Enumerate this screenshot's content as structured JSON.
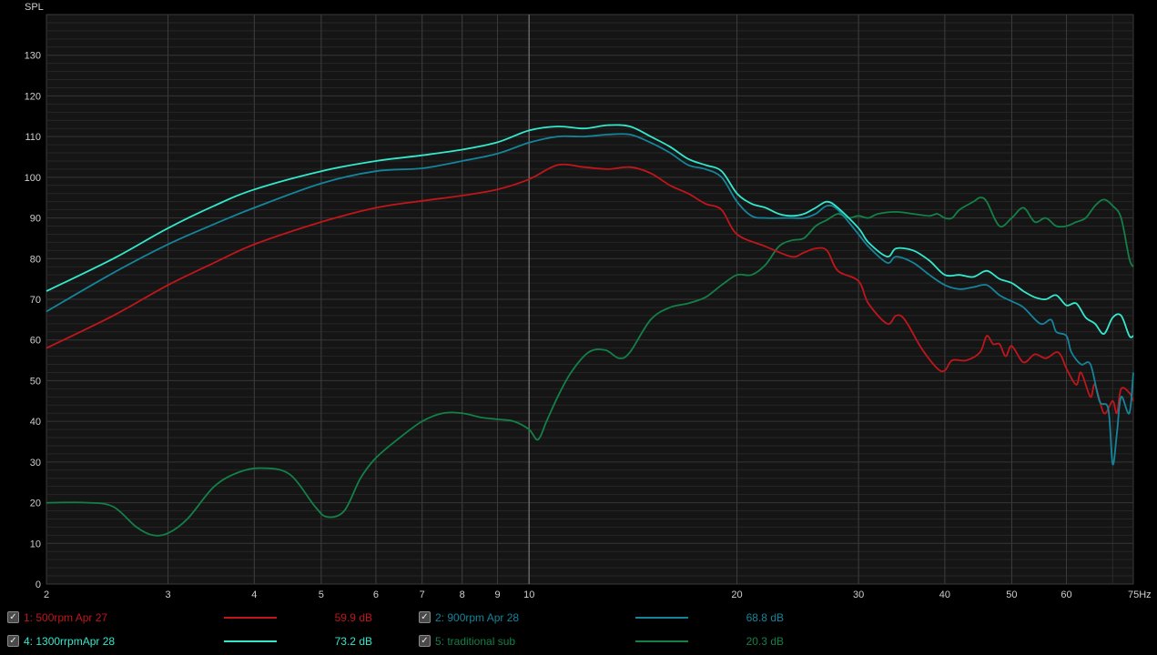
{
  "chart_data": {
    "type": "line",
    "xscale": "log",
    "xlim": [
      2,
      75
    ],
    "ylim": [
      0,
      140
    ],
    "ylabel": "SPL",
    "xunit": "Hz",
    "grid": true,
    "xtick_labels": [
      {
        "x": 2,
        "label": "2"
      },
      {
        "x": 3,
        "label": "3"
      },
      {
        "x": 4,
        "label": "4"
      },
      {
        "x": 5,
        "label": "5"
      },
      {
        "x": 6,
        "label": "6"
      },
      {
        "x": 7,
        "label": "7"
      },
      {
        "x": 8,
        "label": "8"
      },
      {
        "x": 9,
        "label": "9"
      },
      {
        "x": 10,
        "label": "10"
      },
      {
        "x": 20,
        "label": "20"
      },
      {
        "x": 30,
        "label": "30"
      },
      {
        "x": 40,
        "label": "40"
      },
      {
        "x": 50,
        "label": "50"
      },
      {
        "x": 60,
        "label": "60"
      },
      {
        "x": 75,
        "label": "75Hz"
      }
    ],
    "ytick_labels": [
      "0",
      "10",
      "20",
      "30",
      "40",
      "50",
      "60",
      "70",
      "80",
      "90",
      "100",
      "110",
      "120",
      "130"
    ],
    "series": [
      {
        "name": "1: 500rpm Apr 27",
        "color": "#c0161b",
        "value_label": "59.9 dB",
        "points": [
          [
            2,
            58
          ],
          [
            2.5,
            66
          ],
          [
            3,
            73.5
          ],
          [
            3.5,
            79
          ],
          [
            4,
            83.5
          ],
          [
            5,
            89
          ],
          [
            6,
            92.5
          ],
          [
            7,
            94.2
          ],
          [
            8,
            95.5
          ],
          [
            9,
            97
          ],
          [
            10,
            99.5
          ],
          [
            11,
            103
          ],
          [
            12,
            102.5
          ],
          [
            13,
            102
          ],
          [
            14,
            102.5
          ],
          [
            15,
            101
          ],
          [
            16,
            98
          ],
          [
            17,
            96
          ],
          [
            18,
            93.5
          ],
          [
            19,
            92
          ],
          [
            20,
            86
          ],
          [
            22,
            83
          ],
          [
            24,
            80.5
          ],
          [
            25,
            81.5
          ],
          [
            26,
            82.5
          ],
          [
            27,
            82
          ],
          [
            28,
            77
          ],
          [
            30,
            74.5
          ],
          [
            31,
            69
          ],
          [
            33,
            64
          ],
          [
            34,
            66
          ],
          [
            35,
            65
          ],
          [
            37,
            58
          ],
          [
            39,
            53
          ],
          [
            40,
            52.5
          ],
          [
            41,
            55
          ],
          [
            43,
            55
          ],
          [
            45,
            57
          ],
          [
            46,
            61
          ],
          [
            47,
            59
          ],
          [
            48,
            59
          ],
          [
            49,
            56
          ],
          [
            50,
            58.5
          ],
          [
            52,
            54.5
          ],
          [
            54,
            56.5
          ],
          [
            56,
            55.5
          ],
          [
            58,
            57
          ],
          [
            59,
            56
          ],
          [
            60,
            53
          ],
          [
            62,
            49
          ],
          [
            63,
            52
          ],
          [
            65,
            46
          ],
          [
            66,
            49
          ],
          [
            68,
            42
          ],
          [
            70,
            45
          ],
          [
            71,
            42
          ],
          [
            72,
            48
          ],
          [
            74,
            47
          ],
          [
            75,
            45
          ]
        ]
      },
      {
        "name": "2: 900rpm Apr 28",
        "color": "#15849a",
        "value_label": "68.8 dB",
        "points": [
          [
            2,
            67
          ],
          [
            2.5,
            76.5
          ],
          [
            3,
            83.5
          ],
          [
            3.5,
            88.5
          ],
          [
            4,
            92.5
          ],
          [
            5,
            98.5
          ],
          [
            6,
            101.5
          ],
          [
            7,
            102.2
          ],
          [
            8,
            104
          ],
          [
            9,
            105.8
          ],
          [
            10,
            108.5
          ],
          [
            11,
            110
          ],
          [
            12,
            110
          ],
          [
            13,
            110.5
          ],
          [
            14,
            110.5
          ],
          [
            15,
            108.5
          ],
          [
            16,
            106
          ],
          [
            17,
            103
          ],
          [
            18,
            102
          ],
          [
            19,
            100
          ],
          [
            20,
            94
          ],
          [
            21,
            90.5
          ],
          [
            22,
            90
          ],
          [
            24,
            90
          ],
          [
            25,
            90
          ],
          [
            26,
            91
          ],
          [
            27,
            93
          ],
          [
            28,
            92
          ],
          [
            30,
            86
          ],
          [
            31,
            83
          ],
          [
            33,
            79
          ],
          [
            34,
            80.5
          ],
          [
            36,
            79
          ],
          [
            38,
            76
          ],
          [
            40,
            73.5
          ],
          [
            42,
            72.5
          ],
          [
            44,
            73
          ],
          [
            46,
            73.5
          ],
          [
            48,
            71
          ],
          [
            50,
            69.5
          ],
          [
            52,
            68
          ],
          [
            55,
            64
          ],
          [
            57,
            65
          ],
          [
            58,
            62
          ],
          [
            60,
            61
          ],
          [
            61,
            57
          ],
          [
            63,
            54
          ],
          [
            65,
            54
          ],
          [
            67,
            45
          ],
          [
            69,
            43
          ],
          [
            70,
            29.5
          ],
          [
            71,
            37
          ],
          [
            72,
            46
          ],
          [
            74,
            42
          ],
          [
            75,
            52
          ]
        ]
      },
      {
        "name": "4: 1300rrpmApr 28",
        "color": "#33e8cc",
        "value_label": "73.2 dB",
        "points": [
          [
            2,
            72
          ],
          [
            2.5,
            80
          ],
          [
            3,
            87.5
          ],
          [
            3.5,
            93
          ],
          [
            4,
            97
          ],
          [
            5,
            101.5
          ],
          [
            6,
            104
          ],
          [
            7,
            105.4
          ],
          [
            8,
            106.8
          ],
          [
            9,
            108.6
          ],
          [
            10,
            111.5
          ],
          [
            11,
            112.5
          ],
          [
            12,
            112
          ],
          [
            13,
            112.8
          ],
          [
            14,
            112.5
          ],
          [
            15,
            110
          ],
          [
            16,
            107.5
          ],
          [
            17,
            104.5
          ],
          [
            18,
            103
          ],
          [
            19,
            101.5
          ],
          [
            20,
            96
          ],
          [
            21,
            93.5
          ],
          [
            22,
            92.5
          ],
          [
            23,
            91
          ],
          [
            24,
            90.5
          ],
          [
            25,
            91
          ],
          [
            26,
            92.5
          ],
          [
            27,
            94
          ],
          [
            28,
            92.5
          ],
          [
            30,
            87.5
          ],
          [
            31,
            84
          ],
          [
            33,
            80.5
          ],
          [
            34,
            82.5
          ],
          [
            36,
            82
          ],
          [
            38,
            79.5
          ],
          [
            40,
            76
          ],
          [
            42,
            76
          ],
          [
            44,
            75.5
          ],
          [
            46,
            77
          ],
          [
            48,
            75
          ],
          [
            50,
            74
          ],
          [
            52,
            72
          ],
          [
            54,
            70.5
          ],
          [
            56,
            70
          ],
          [
            58,
            71
          ],
          [
            60,
            68.5
          ],
          [
            62,
            69
          ],
          [
            64,
            65.5
          ],
          [
            66,
            64
          ],
          [
            68,
            61.5
          ],
          [
            70,
            65.5
          ],
          [
            72,
            66
          ],
          [
            74,
            61
          ],
          [
            75,
            61
          ]
        ]
      },
      {
        "name": "5: traditional sub",
        "color": "#138046",
        "value_label": "20.3 dB",
        "points": [
          [
            2,
            20
          ],
          [
            2.3,
            20
          ],
          [
            2.5,
            19
          ],
          [
            2.7,
            14
          ],
          [
            2.85,
            12
          ],
          [
            3,
            12.5
          ],
          [
            3.2,
            16
          ],
          [
            3.5,
            24
          ],
          [
            3.8,
            27.5
          ],
          [
            4.1,
            28.5
          ],
          [
            4.5,
            27
          ],
          [
            4.9,
            19
          ],
          [
            5.1,
            16.5
          ],
          [
            5.4,
            18
          ],
          [
            5.7,
            26
          ],
          [
            6,
            31
          ],
          [
            6.5,
            36
          ],
          [
            7,
            40
          ],
          [
            7.5,
            42
          ],
          [
            8,
            42
          ],
          [
            8.5,
            41
          ],
          [
            9,
            40.5
          ],
          [
            9.5,
            40
          ],
          [
            10,
            38
          ],
          [
            10.3,
            35.5
          ],
          [
            10.6,
            40
          ],
          [
            11,
            46
          ],
          [
            11.5,
            52
          ],
          [
            12.2,
            57
          ],
          [
            12.9,
            57.5
          ],
          [
            13.5,
            55.5
          ],
          [
            14,
            57
          ],
          [
            15,
            65
          ],
          [
            16,
            68
          ],
          [
            17,
            69
          ],
          [
            18,
            70.5
          ],
          [
            19,
            73.5
          ],
          [
            20,
            76
          ],
          [
            21,
            76
          ],
          [
            22,
            78.5
          ],
          [
            23,
            83
          ],
          [
            24,
            84.5
          ],
          [
            25,
            85
          ],
          [
            26,
            88
          ],
          [
            27,
            89.5
          ],
          [
            28,
            91
          ],
          [
            29,
            90
          ],
          [
            30,
            90.5
          ],
          [
            31,
            90
          ],
          [
            32,
            91
          ],
          [
            34,
            91.5
          ],
          [
            36,
            91
          ],
          [
            38,
            90.5
          ],
          [
            39,
            91
          ],
          [
            40,
            90
          ],
          [
            41,
            90
          ],
          [
            42,
            92
          ],
          [
            44,
            94
          ],
          [
            45,
            95
          ],
          [
            46,
            94
          ],
          [
            48,
            88
          ],
          [
            50,
            90
          ],
          [
            52,
            92.5
          ],
          [
            54,
            89
          ],
          [
            56,
            90
          ],
          [
            58,
            88
          ],
          [
            60,
            88
          ],
          [
            62,
            89
          ],
          [
            64,
            90
          ],
          [
            66,
            93
          ],
          [
            68,
            94.5
          ],
          [
            70,
            93
          ],
          [
            72,
            90
          ],
          [
            74,
            80
          ],
          [
            75,
            78
          ]
        ]
      }
    ]
  },
  "legend": [
    {
      "label": "1: 500rpm Apr 27",
      "value": "59.9 dB",
      "color": "#c0161b",
      "checked": "✓"
    },
    {
      "label": "2: 900rpm Apr 28",
      "value": "68.8 dB",
      "color": "#15849a",
      "checked": "✓"
    },
    {
      "label": "4: 1300rrpmApr 28",
      "value": "73.2 dB",
      "color": "#33e8cc",
      "checked": "✓"
    },
    {
      "label": "5: traditional sub",
      "value": "20.3 dB",
      "color": "#138046",
      "checked": "✓"
    }
  ]
}
